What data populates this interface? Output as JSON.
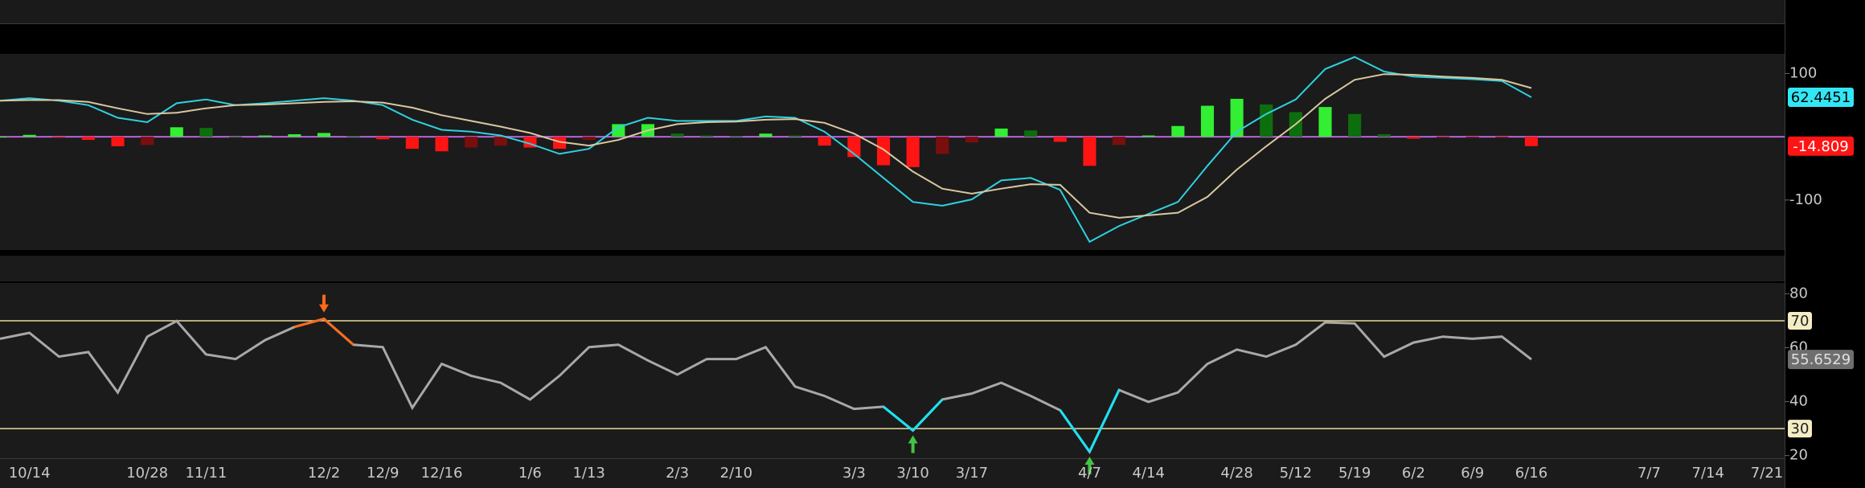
{
  "chart_data": [
    {
      "type": "oscillator",
      "ylim": [
        -179,
        131
      ],
      "yticks": [
        -100,
        100
      ],
      "zero_line_color": "#b565d8",
      "series": [
        {
          "color": "#2fd0e0",
          "tag_color": "#33e6f5",
          "values": [
            57,
            61,
            57,
            50,
            30,
            23,
            53,
            59,
            50,
            53,
            57,
            61,
            57,
            50,
            27,
            11,
            8,
            2,
            -11,
            -27,
            -19,
            15,
            30,
            25,
            25,
            25,
            32,
            30,
            8,
            -27,
            -65,
            -103,
            -109,
            -99,
            -69,
            -65,
            -84,
            -166,
            -141,
            -122,
            -103,
            -46,
            8,
            36,
            59,
            107,
            126,
            103,
            95,
            93,
            91,
            88,
            62.4451,
            null,
            null,
            null,
            null,
            null,
            null,
            null,
            null
          ]
        },
        {
          "color": "#d9c7a0",
          "values": [
            57,
            58,
            58,
            55,
            45,
            36,
            38,
            45,
            50,
            51,
            53,
            55,
            56,
            54,
            46,
            34,
            25,
            16,
            6,
            -8,
            -14,
            -5,
            10,
            20,
            23,
            24,
            27,
            28,
            22,
            5,
            -20,
            -55,
            -82,
            -90,
            -82,
            -75,
            -76,
            -120,
            -128,
            -124,
            -120,
            -95,
            -52,
            -15,
            20,
            60,
            90,
            99,
            98,
            95,
            93,
            90,
            77,
            null,
            null,
            null,
            null,
            null,
            null,
            null,
            null
          ]
        },
        {
          "type": "bar",
          "tag_color": "#ff1414",
          "colors": {
            "positive_rising": "#33ee33",
            "positive_falling": "#0d6e0d",
            "negative_falling": "#ff1414",
            "negative_rising": "#7a0e0e"
          },
          "values": [
            0,
            3,
            -1,
            -5,
            -15,
            -13,
            15,
            14,
            0,
            2,
            4,
            6,
            1,
            -4,
            -19,
            -23,
            -17,
            -14,
            -17,
            -19,
            -5,
            20,
            20,
            5,
            2,
            1,
            5,
            2,
            -14,
            -32,
            -45,
            -48,
            -27,
            -9,
            13,
            10,
            -8,
            -46,
            -13,
            2,
            17,
            49,
            60,
            51,
            39,
            47,
            36,
            4,
            -3,
            -2,
            -2,
            -2,
            -14.809,
            null,
            null,
            null,
            null,
            null,
            null,
            null,
            null
          ]
        }
      ]
    },
    {
      "type": "rsi",
      "categories": [
        null,
        "10/14",
        null,
        null,
        null,
        "10/28",
        null,
        "11/11",
        null,
        null,
        null,
        "12/2",
        null,
        "12/9",
        null,
        "12/16",
        null,
        null,
        "1/6",
        null,
        "1/13",
        null,
        null,
        "2/3",
        null,
        "2/10",
        null,
        null,
        null,
        "3/3",
        null,
        "3/10",
        null,
        "3/17",
        null,
        null,
        null,
        "4/7",
        null,
        "4/14",
        null,
        null,
        "4/28",
        null,
        "5/12",
        null,
        "5/19",
        null,
        "6/2",
        null,
        "6/9",
        null,
        "6/16",
        null,
        null,
        null,
        "7/7",
        null,
        "7/14",
        null,
        "7/21"
      ],
      "ylim": [
        19,
        84
      ],
      "yticks": [
        20,
        40,
        60,
        80
      ],
      "levels": [
        30,
        70
      ],
      "level_color": "#e8dc9a",
      "overbought_color": "#ff6a1a",
      "oversold_color": "#19e3f2",
      "buy_arrow_color": "#44c444",
      "sell_arrow_color": "#ff6a1a",
      "series": [
        {
          "color": "#a8a8a8",
          "tag_color": "#6e6e6e",
          "values": [
            63.3,
            65.5,
            56.7,
            58.4,
            43.4,
            64.1,
            69.9,
            57.5,
            55.8,
            62.8,
            67.7,
            70.7,
            61.1,
            60.2,
            37.7,
            54,
            49.6,
            47,
            40.8,
            49.6,
            60.2,
            61.1,
            55.3,
            50,
            55.8,
            55.8,
            60.2,
            45.6,
            42.1,
            37.3,
            38.1,
            29.3,
            40.8,
            43,
            47,
            42.1,
            36.8,
            21.4,
            44.3,
            39.9,
            43.4,
            54,
            59.3,
            56.7,
            61.1,
            69.4,
            69,
            56.7,
            61.9,
            64.1,
            63.3,
            64.1,
            55.6529,
            null,
            null,
            null,
            null,
            null,
            null,
            null,
            null
          ]
        }
      ]
    }
  ]
}
